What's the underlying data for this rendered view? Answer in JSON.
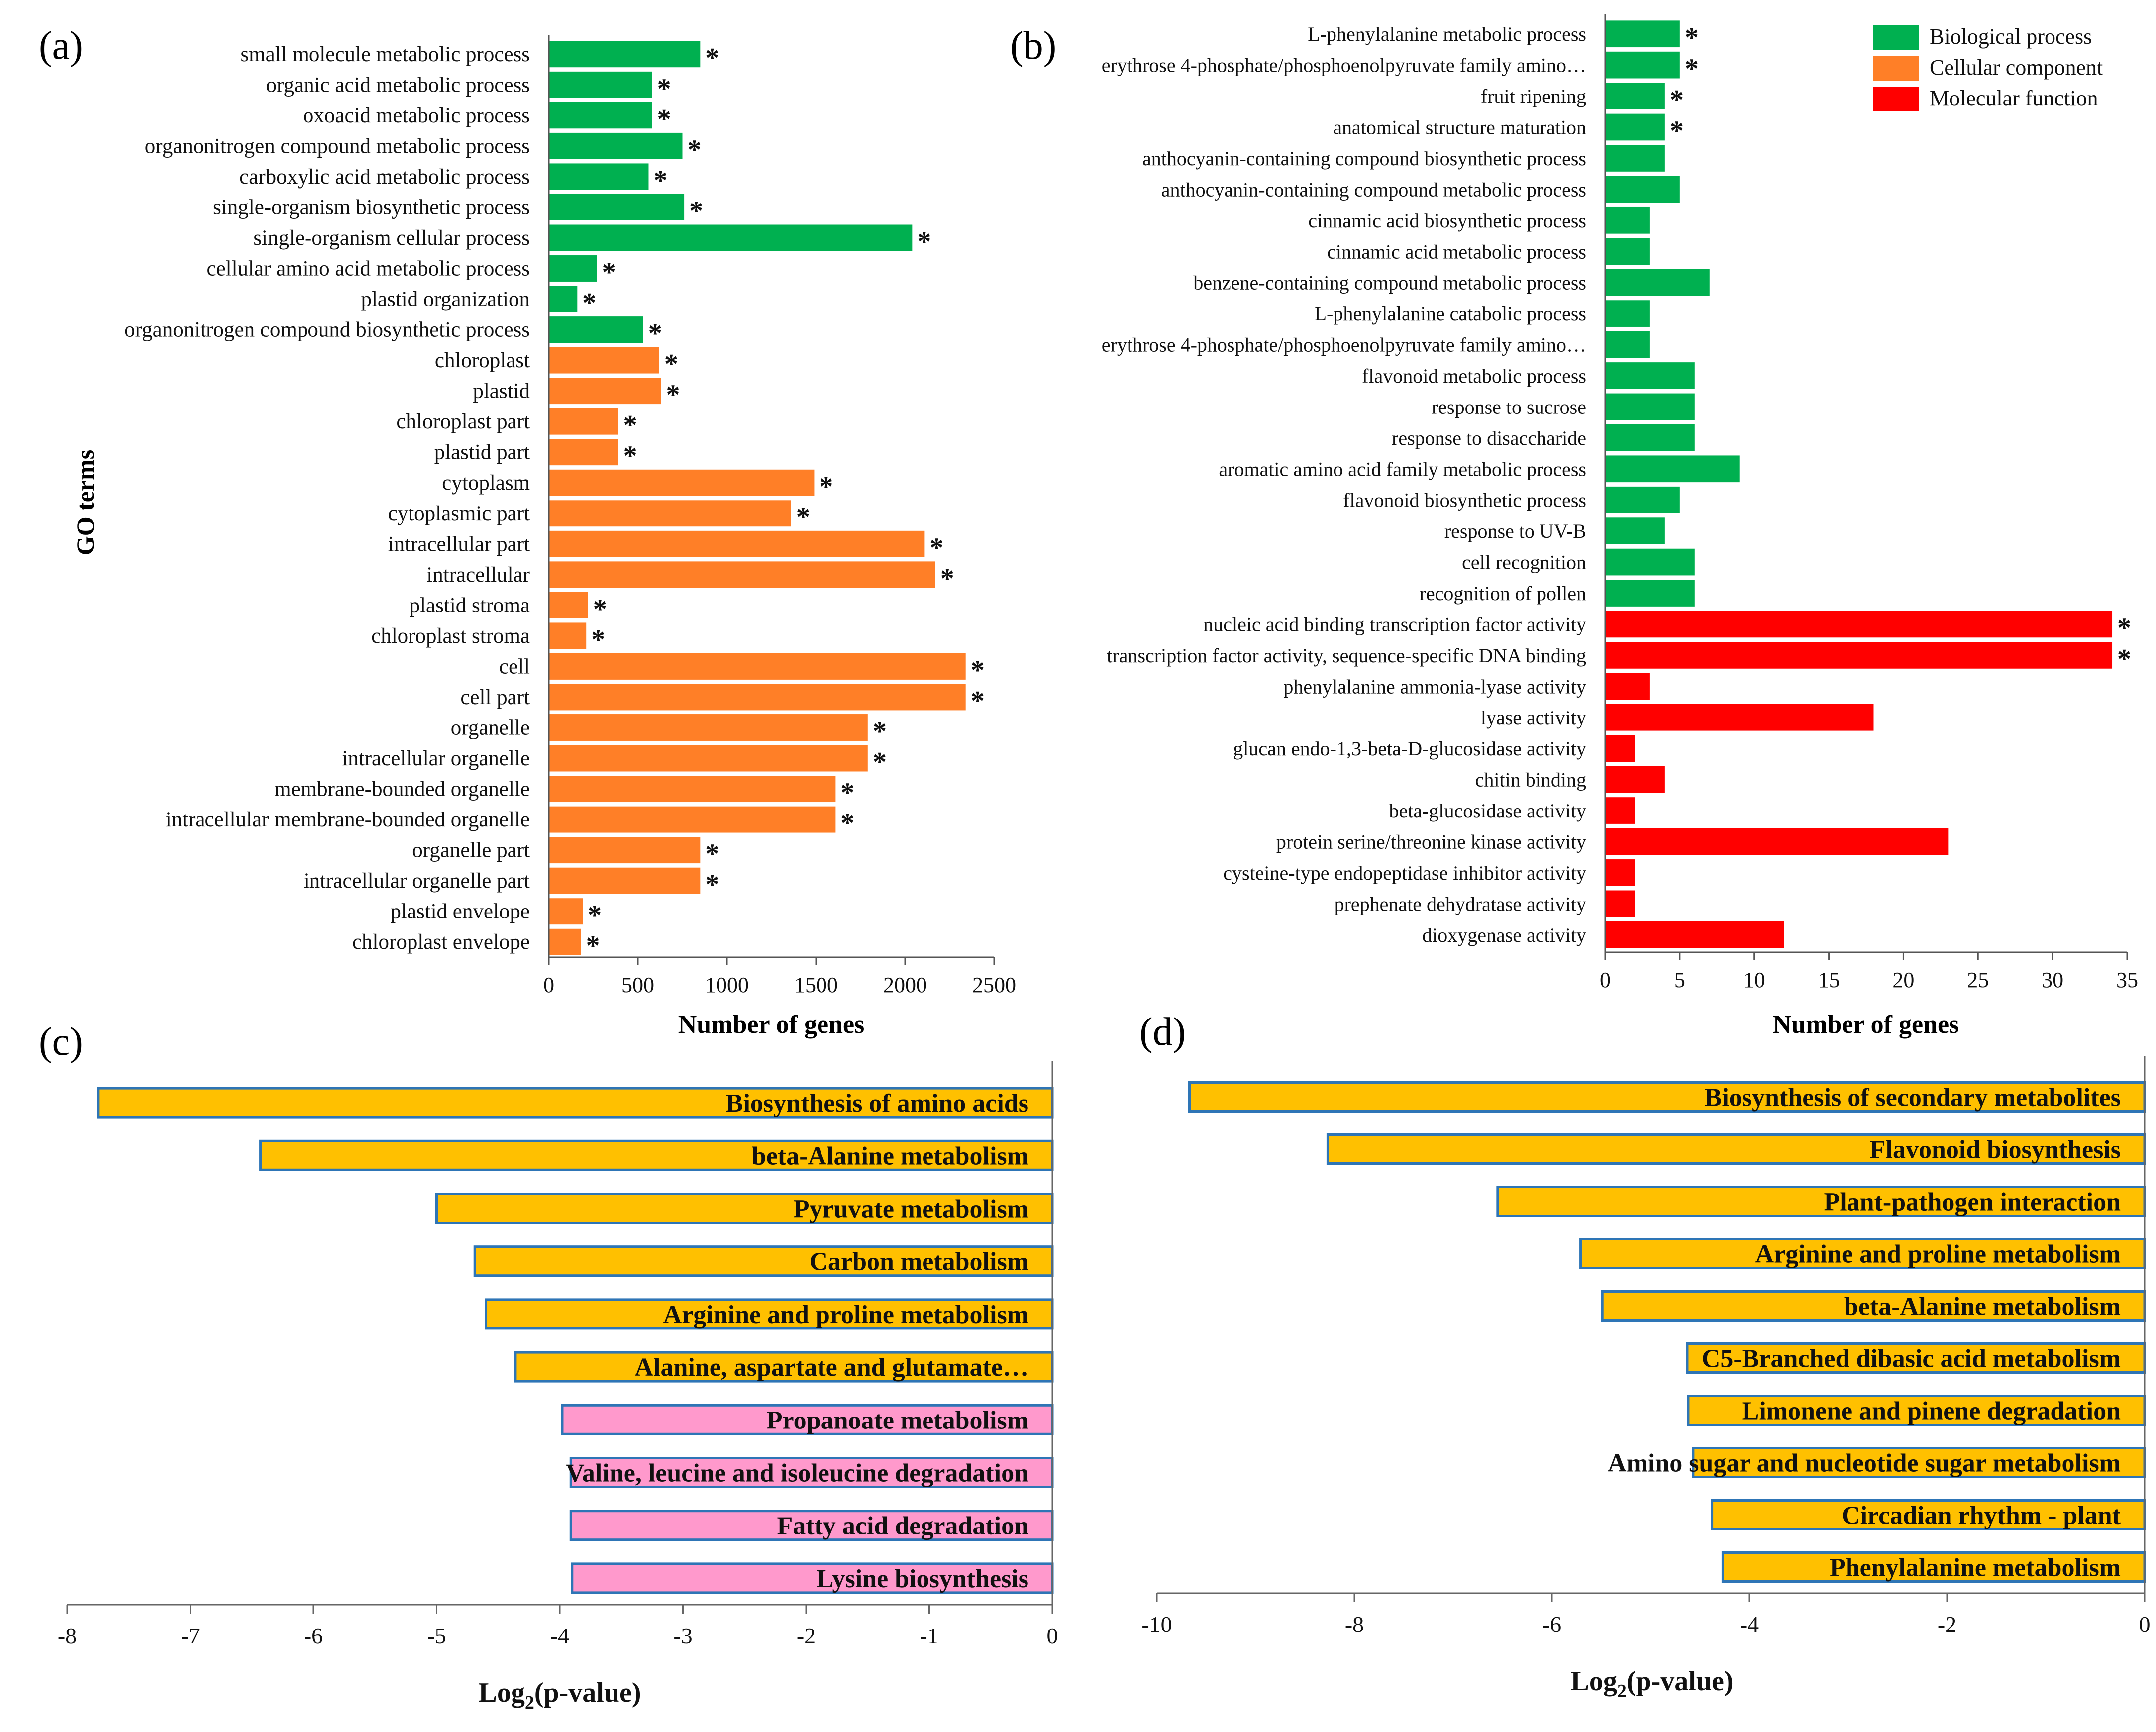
{
  "chart_data": [
    {
      "panel": "(a)",
      "type": "bar",
      "orientation": "horizontal",
      "xlabel": "Number of genes",
      "ylabel": "GO terms",
      "xlim": [
        0,
        2500
      ],
      "xticks": [
        "0",
        "500",
        "1000",
        "1500",
        "2000",
        "2500"
      ],
      "significance_marker": "*",
      "series_colors": {
        "Biological process": "#00b050",
        "Cellular component": "#ff7f27"
      },
      "categories": [
        "small molecule metabolic process",
        "organic acid metabolic process",
        "oxoacid metabolic process",
        "organonitrogen compound metabolic process",
        "carboxylic acid metabolic process",
        "single-organism biosynthetic process",
        "single-organism cellular process",
        "cellular amino acid metabolic process",
        "plastid organization",
        "organonitrogen compound biosynthetic process",
        "chloroplast",
        "plastid",
        "chloroplast part",
        "plastid part",
        "cytoplasm",
        "cytoplasmic part",
        "intracellular part",
        "intracellular",
        "plastid stroma",
        "chloroplast stroma",
        "cell",
        "cell part",
        "organelle",
        "intracellular organelle",
        "membrane-bounded organelle",
        "intracellular membrane-bounded organelle",
        "organelle part",
        "intracellular organelle part",
        "plastid envelope",
        "chloroplast envelope"
      ],
      "values": [
        850,
        580,
        580,
        750,
        560,
        760,
        2040,
        270,
        160,
        530,
        620,
        630,
        390,
        390,
        1490,
        1360,
        2110,
        2170,
        220,
        210,
        2340,
        2340,
        1790,
        1790,
        1610,
        1610,
        850,
        850,
        190,
        180
      ],
      "groups": [
        "Biological process",
        "Biological process",
        "Biological process",
        "Biological process",
        "Biological process",
        "Biological process",
        "Biological process",
        "Biological process",
        "Biological process",
        "Biological process",
        "Cellular component",
        "Cellular component",
        "Cellular component",
        "Cellular component",
        "Cellular component",
        "Cellular component",
        "Cellular component",
        "Cellular component",
        "Cellular component",
        "Cellular component",
        "Cellular component",
        "Cellular component",
        "Cellular component",
        "Cellular component",
        "Cellular component",
        "Cellular component",
        "Cellular component",
        "Cellular component",
        "Cellular component",
        "Cellular component"
      ],
      "significant": [
        true,
        true,
        true,
        true,
        true,
        true,
        true,
        true,
        true,
        true,
        true,
        true,
        true,
        true,
        true,
        true,
        true,
        true,
        true,
        true,
        true,
        true,
        true,
        true,
        true,
        true,
        true,
        true,
        true,
        true
      ]
    },
    {
      "panel": "(b)",
      "type": "bar",
      "orientation": "horizontal",
      "xlabel": "Number of genes",
      "xlim": [
        0,
        35
      ],
      "xticks": [
        "0",
        "5",
        "10",
        "15",
        "20",
        "25",
        "30",
        "35"
      ],
      "significance_marker": "*",
      "legend": {
        "position": "top-right",
        "entries": [
          {
            "label": "Biological process",
            "color": "#00b050"
          },
          {
            "label": "Cellular component",
            "color": "#ff7f27"
          },
          {
            "label": "Molecular function",
            "color": "#ff0000"
          }
        ]
      },
      "series_colors": {
        "Biological process": "#00b050",
        "Molecular function": "#ff0000"
      },
      "categories": [
        "L-phenylalanine metabolic process",
        "erythrose 4-phosphate/phosphoenolpyruvate family amino…",
        "fruit ripening",
        "anatomical structure maturation",
        "anthocyanin-containing compound biosynthetic process",
        "anthocyanin-containing compound metabolic process",
        "cinnamic acid biosynthetic process",
        "cinnamic acid metabolic process",
        "benzene-containing compound metabolic process",
        "L-phenylalanine catabolic process",
        "erythrose 4-phosphate/phosphoenolpyruvate family amino…",
        "flavonoid metabolic process",
        "response to sucrose",
        "response to disaccharide",
        "aromatic amino acid family metabolic process",
        "flavonoid biosynthetic process",
        "response to UV-B",
        "cell recognition",
        "recognition of pollen",
        "nucleic acid binding transcription factor activity",
        "transcription factor activity, sequence-specific DNA binding",
        "phenylalanine ammonia-lyase activity",
        "lyase activity",
        "glucan endo-1,3-beta-D-glucosidase activity",
        "chitin binding",
        "beta-glucosidase activity",
        "protein serine/threonine kinase activity",
        "cysteine-type endopeptidase inhibitor activity",
        "prephenate dehydratase activity",
        "dioxygenase activity"
      ],
      "values": [
        5,
        5,
        4,
        4,
        4,
        5,
        3,
        3,
        7,
        3,
        3,
        6,
        6,
        6,
        9,
        5,
        4,
        6,
        6,
        34,
        34,
        3,
        18,
        2,
        4,
        2,
        23,
        2,
        2,
        12
      ],
      "groups": [
        "Biological process",
        "Biological process",
        "Biological process",
        "Biological process",
        "Biological process",
        "Biological process",
        "Biological process",
        "Biological process",
        "Biological process",
        "Biological process",
        "Biological process",
        "Biological process",
        "Biological process",
        "Biological process",
        "Biological process",
        "Biological process",
        "Biological process",
        "Biological process",
        "Biological process",
        "Molecular function",
        "Molecular function",
        "Molecular function",
        "Molecular function",
        "Molecular function",
        "Molecular function",
        "Molecular function",
        "Molecular function",
        "Molecular function",
        "Molecular function",
        "Molecular function"
      ],
      "significant": [
        true,
        true,
        true,
        true,
        false,
        false,
        false,
        false,
        false,
        false,
        false,
        false,
        false,
        false,
        false,
        false,
        false,
        false,
        false,
        true,
        true,
        false,
        false,
        false,
        false,
        false,
        false,
        false,
        false,
        false
      ]
    },
    {
      "panel": "(c)",
      "type": "bar",
      "orientation": "horizontal",
      "xlabel": "Log2(p-value)",
      "xlim": [
        -8,
        0
      ],
      "xticks": [
        "-8",
        "-7",
        "-6",
        "-5",
        "-4",
        "-3",
        "-2",
        "-1",
        "0"
      ],
      "categories": [
        "Biosynthesis of amino acids",
        "beta-Alanine metabolism",
        "Pyruvate metabolism",
        "Carbon metabolism",
        "Arginine and proline metabolism",
        "Alanine, aspartate and glutamate…",
        "Propanoate metabolism",
        "Valine, leucine and isoleucine degradation",
        "Fatty acid degradation",
        "Lysine biosynthesis"
      ],
      "values": [
        -7.75,
        -6.43,
        -5.0,
        -4.69,
        -4.6,
        -4.36,
        -3.98,
        -3.91,
        -3.91,
        -3.9
      ],
      "colors": [
        "#ffc000",
        "#ffc000",
        "#ffc000",
        "#ffc000",
        "#ffc000",
        "#ffc000",
        "#ff99cc",
        "#ff99cc",
        "#ff99cc",
        "#ff99cc"
      ]
    },
    {
      "panel": "(d)",
      "type": "bar",
      "orientation": "horizontal",
      "xlabel": "Log2(p-value)",
      "xlim": [
        -10,
        0
      ],
      "xticks": [
        "-10",
        "-8",
        "-6",
        "-4",
        "-2",
        "0"
      ],
      "categories": [
        "Biosynthesis of secondary metabolites",
        "Flavonoid biosynthesis",
        "Plant-pathogen interaction",
        "Arginine and proline metabolism",
        "beta-Alanine metabolism",
        "C5-Branched dibasic acid metabolism",
        "Limonene and pinene degradation",
        "Amino sugar and nucleotide sugar metabolism",
        "Circadian rhythm - plant",
        "Phenylalanine metabolism"
      ],
      "values": [
        -9.67,
        -8.27,
        -6.55,
        -5.71,
        -5.49,
        -4.63,
        -4.62,
        -4.57,
        -4.38,
        -4.27
      ],
      "colors": [
        "#ffc000",
        "#ffc000",
        "#ffc000",
        "#ffc000",
        "#ffc000",
        "#ffc000",
        "#ffc000",
        "#ffc000",
        "#ffc000",
        "#ffc000"
      ]
    }
  ]
}
